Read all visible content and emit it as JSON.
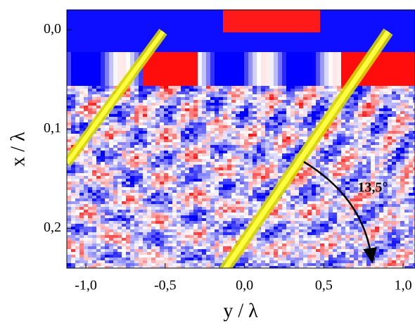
{
  "chart_data": {
    "type": "heatmap",
    "x_label": "y / λ",
    "y_label": "x / λ",
    "xlim": [
      -1.12,
      1.075
    ],
    "xticks": [
      {
        "value": -1,
        "label": "-1,0"
      },
      {
        "value": -0.5,
        "label": "-0,5"
      },
      {
        "value": 0,
        "label": "0,0"
      },
      {
        "value": 0.5,
        "label": "0,5"
      },
      {
        "value": 1,
        "label": "1,0"
      }
    ],
    "ylim": [
      -0.02,
      0.24
    ],
    "y_inverted": true,
    "yticks": [
      {
        "value": 0,
        "label": "0,0"
      },
      {
        "value": 0.1,
        "label": "0,1"
      },
      {
        "value": 0.2,
        "label": "0,2"
      }
    ],
    "annotation": "13,5°"
  }
}
